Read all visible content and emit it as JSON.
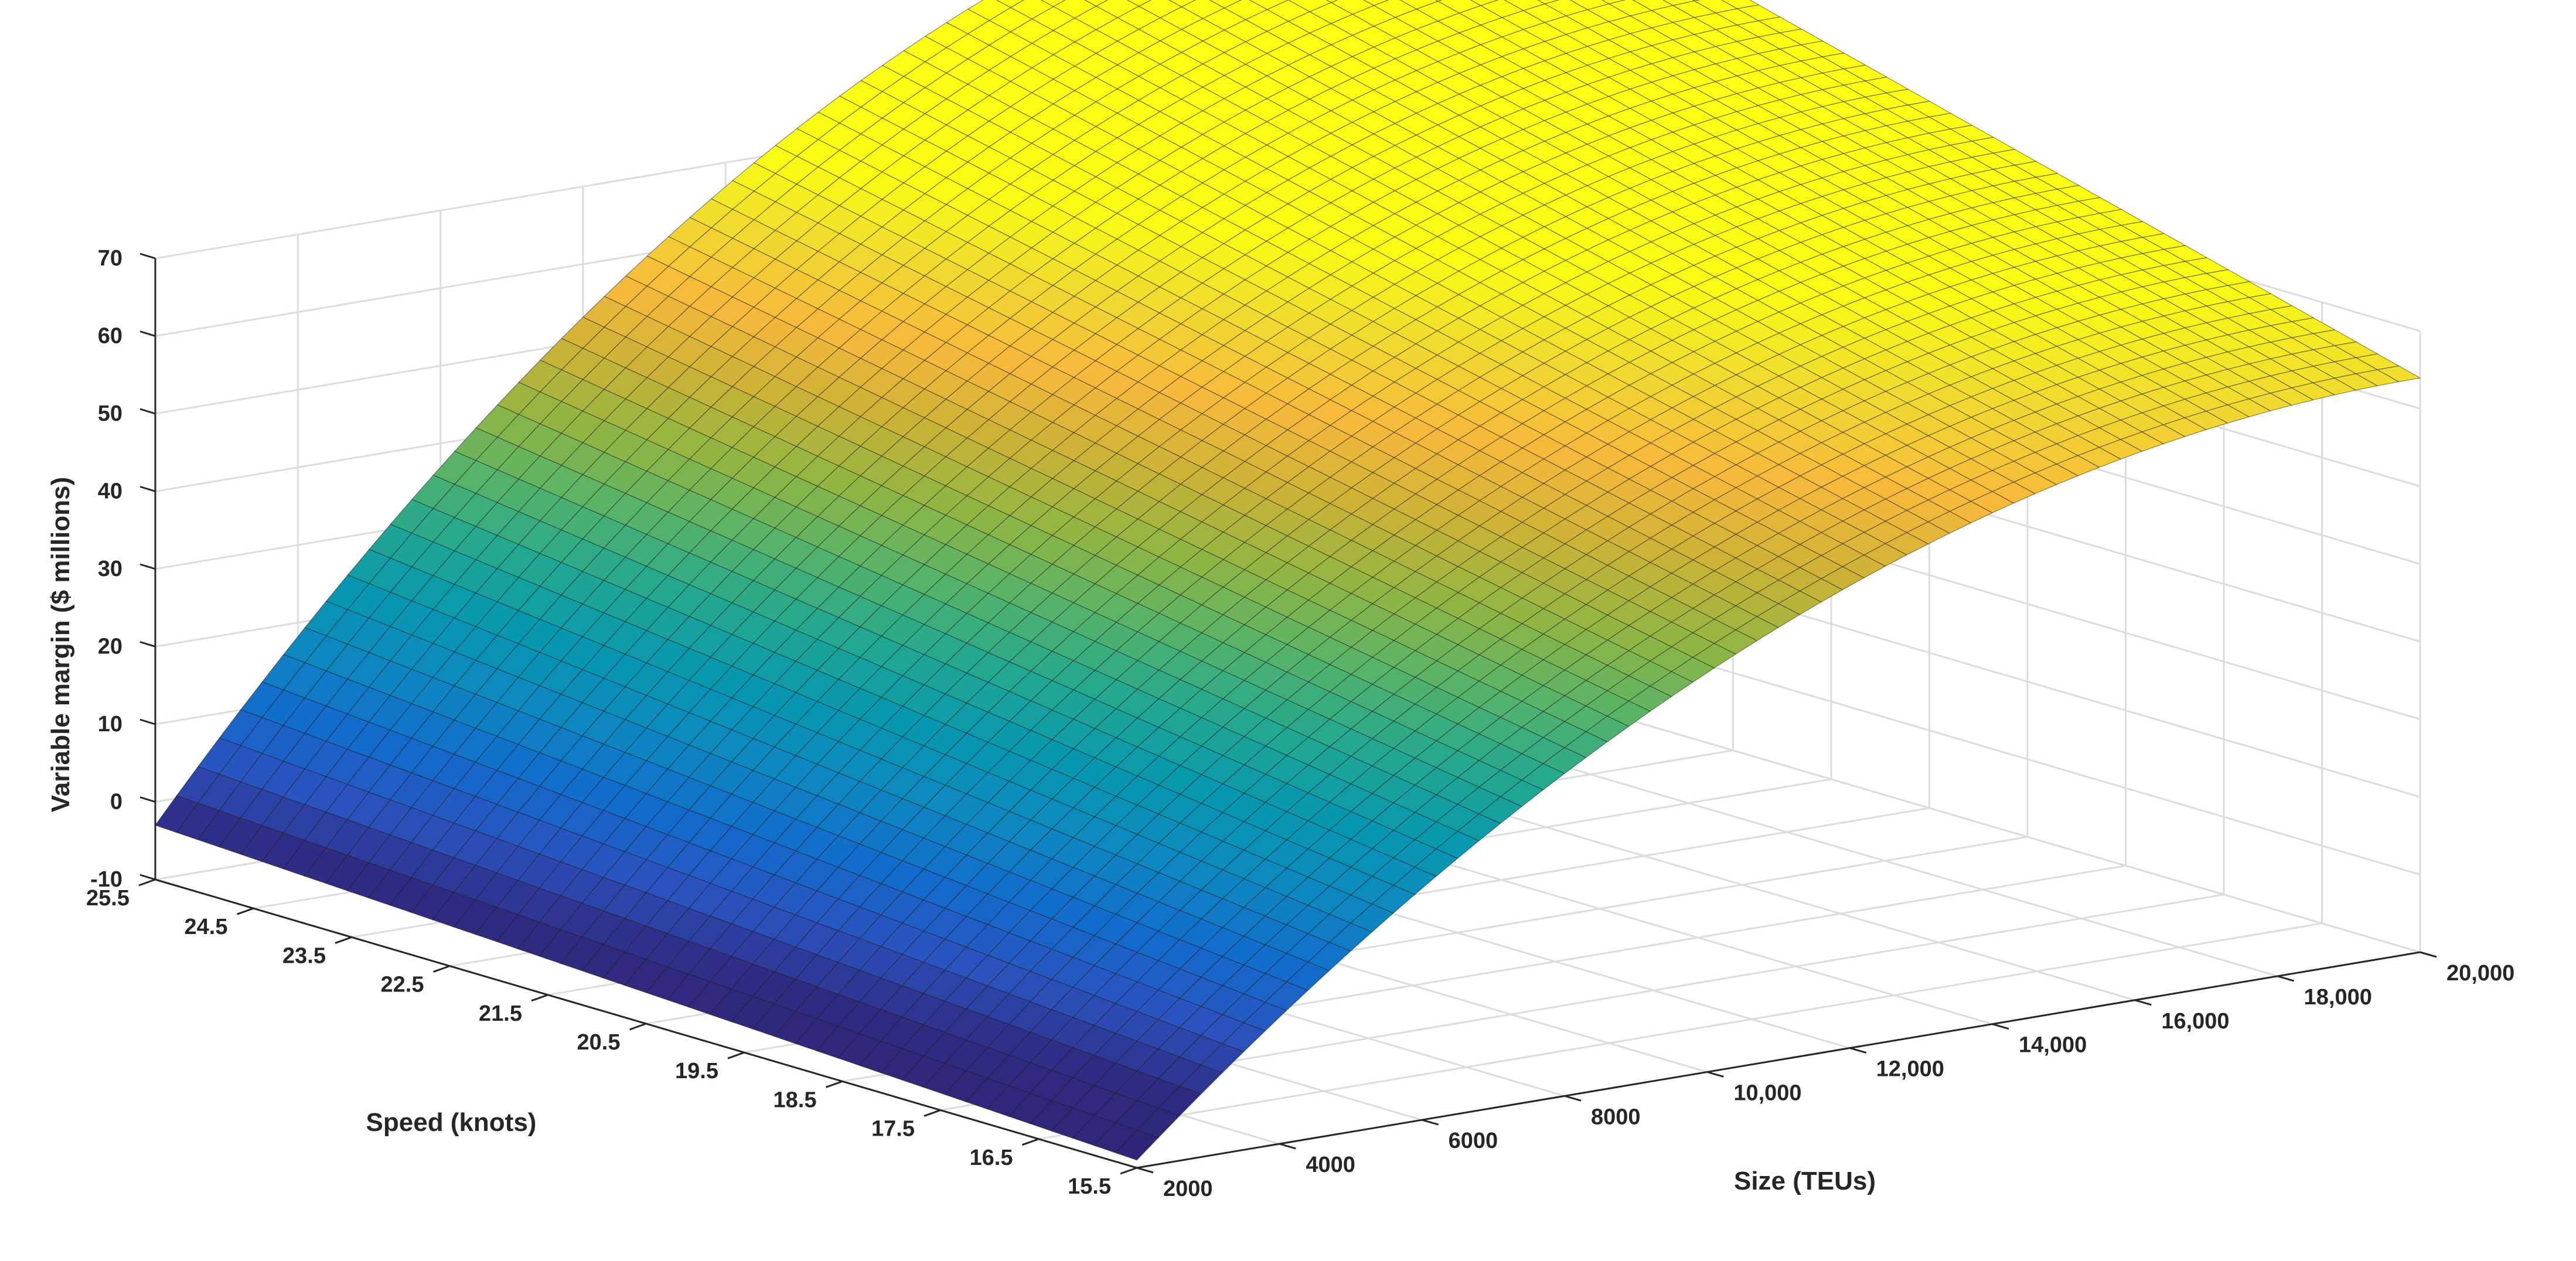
{
  "chart_data": {
    "type": "surface",
    "title": "",
    "xlabel": "Size (TEUs)",
    "ylabel": "Speed (knots)",
    "zlabel": "Variable margin ($ millions)",
    "x_ticks": [
      "2000",
      "4000",
      "6000",
      "8000",
      "10,000",
      "12,000",
      "14,000",
      "16,000",
      "18,000",
      "20,000"
    ],
    "y_ticks": [
      "15.5",
      "16.5",
      "17.5",
      "18.5",
      "19.5",
      "20.5",
      "21.5",
      "22.5",
      "23.5",
      "24.5",
      "25.5"
    ],
    "z_ticks": [
      "-10",
      "0",
      "10",
      "20",
      "30",
      "40",
      "50",
      "60",
      "70"
    ],
    "x_range": [
      2000,
      20000
    ],
    "y_range": [
      15.5,
      25.5
    ],
    "z_range": [
      -10,
      70
    ],
    "grid": true,
    "colormap": "parula",
    "corner_values": [
      {
        "x": 2000,
        "y": 15.5,
        "z": -9
      },
      {
        "x": 2000,
        "y": 25.5,
        "z": -3
      },
      {
        "x": 20000,
        "y": 15.5,
        "z": 48
      },
      {
        "x": 20000,
        "y": 25.5,
        "z": 57
      }
    ],
    "max_value": {
      "x": 15000,
      "y": 25.5,
      "z": 70
    }
  }
}
